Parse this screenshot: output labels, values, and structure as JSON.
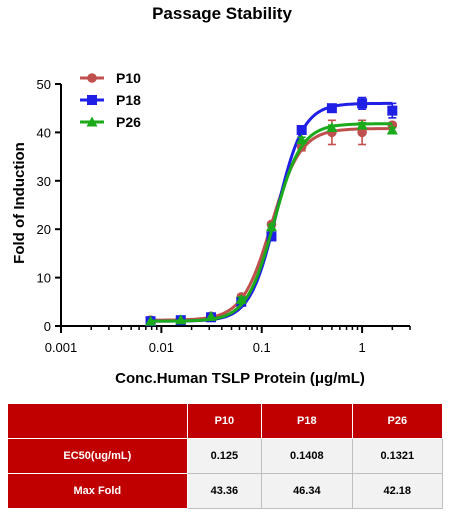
{
  "chart_data": {
    "type": "scatter",
    "title": "Passage Stability",
    "xlabel": "Conc.Human TSLP Protein (μg/mL)",
    "ylabel": "Fold of Induction",
    "xscale": "log",
    "xlim": [
      0.001,
      3
    ],
    "ylim": [
      0,
      50
    ],
    "xticks": [
      0.001,
      0.01,
      0.1,
      1
    ],
    "xtick_labels": [
      "0.001",
      "0.01",
      "0.1",
      "1"
    ],
    "yticks": [
      0,
      10,
      20,
      30,
      40,
      50
    ],
    "legend_position": "top-left",
    "grid": false,
    "series": [
      {
        "name": "P10",
        "color": "#c0504d",
        "marker": "circle",
        "x": [
          0.0078,
          0.0156,
          0.03125,
          0.0625,
          0.125,
          0.25,
          0.5,
          1,
          2
        ],
        "y": [
          1.2,
          1.2,
          2.0,
          6.0,
          21.0,
          37.0,
          40.0,
          40.0,
          41.5
        ],
        "err": [
          0,
          0,
          0,
          0.5,
          0.5,
          0.8,
          2.5,
          2.5,
          0.5
        ],
        "fit": {
          "bottom": 1.2,
          "top": 40.8,
          "ec50": 0.125,
          "hill": 3.0
        }
      },
      {
        "name": "P18",
        "color": "#1f1fe6",
        "marker": "square",
        "x": [
          0.0078,
          0.0156,
          0.03125,
          0.0625,
          0.125,
          0.25,
          0.5,
          1,
          2
        ],
        "y": [
          1.0,
          1.2,
          1.8,
          5.0,
          18.5,
          40.5,
          45.0,
          46.0,
          44.5
        ],
        "err": [
          0,
          0,
          0,
          0.5,
          0.5,
          0.5,
          0.5,
          1.2,
          1.5
        ],
        "fit": {
          "bottom": 1.0,
          "top": 46.0,
          "ec50": 0.1408,
          "hill": 3.3
        }
      },
      {
        "name": "P26",
        "color": "#1aaa1a",
        "marker": "triangle",
        "x": [
          0.0078,
          0.0156,
          0.03125,
          0.0625,
          0.125,
          0.25,
          0.5,
          1,
          2
        ],
        "y": [
          1.0,
          1.3,
          2.0,
          5.5,
          20.5,
          38.5,
          41.0,
          41.5,
          40.5
        ],
        "err": [
          0,
          0,
          0,
          0.5,
          0.5,
          0.5,
          0.5,
          0.5,
          0.5
        ],
        "fit": {
          "bottom": 1.0,
          "top": 41.8,
          "ec50": 0.1321,
          "hill": 3.2
        }
      }
    ]
  },
  "table": {
    "headers": [
      "",
      "P10",
      "P18",
      "P26"
    ],
    "rows": [
      {
        "label": "EC50(ug/mL)",
        "values": [
          "0.125",
          "0.1408",
          "0.1321"
        ]
      },
      {
        "label": "Max Fold",
        "values": [
          "43.36",
          "46.34",
          "42.18"
        ]
      }
    ]
  }
}
